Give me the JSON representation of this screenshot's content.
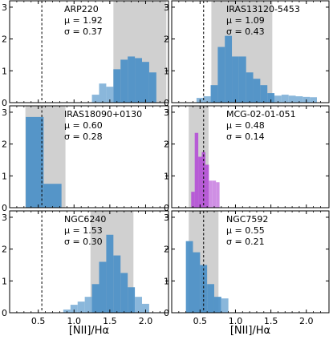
{
  "chart_data": {
    "type": "bar",
    "xlim": [
      0.1,
      2.32
    ],
    "ylim": [
      0,
      3.2
    ],
    "xticks": [
      "0.5",
      "1.0",
      "1.5",
      "2.0"
    ],
    "yticks": [
      "0",
      "1",
      "2",
      "3"
    ],
    "xlabel": "[NII]/Hα",
    "vline_x": 0.55,
    "panels": [
      {
        "title": "ARP220",
        "mu_text": "μ = 1.92",
        "sigma_text": "σ = 0.37",
        "color": "#4a8fc7",
        "shade": [
          1.55,
          2.29
        ],
        "bin_width": 0.1,
        "bins": [
          {
            "x": 1.3,
            "y": 0.25
          },
          {
            "x": 1.4,
            "y": 0.6
          },
          {
            "x": 1.5,
            "y": 0.5
          },
          {
            "x": 1.6,
            "y": 1.05
          },
          {
            "x": 1.7,
            "y": 1.35
          },
          {
            "x": 1.8,
            "y": 1.45
          },
          {
            "x": 1.9,
            "y": 1.4
          },
          {
            "x": 2.0,
            "y": 1.28
          },
          {
            "x": 2.1,
            "y": 0.95
          }
        ]
      },
      {
        "title": "IRAS13120-5453",
        "mu_text": "μ = 1.09",
        "sigma_text": "σ = 0.43",
        "color": "#4a8fc7",
        "shade": [
          0.66,
          1.52
        ],
        "bin_width": 0.1,
        "bins": [
          {
            "x": 0.5,
            "y": 0.15
          },
          {
            "x": 0.6,
            "y": 0.2
          },
          {
            "x": 0.7,
            "y": 0.55
          },
          {
            "x": 0.8,
            "y": 1.75
          },
          {
            "x": 0.9,
            "y": 2.1
          },
          {
            "x": 1.0,
            "y": 1.45
          },
          {
            "x": 1.1,
            "y": 1.45
          },
          {
            "x": 1.2,
            "y": 0.95
          },
          {
            "x": 1.3,
            "y": 0.75
          },
          {
            "x": 1.4,
            "y": 0.55
          },
          {
            "x": 1.5,
            "y": 0.3
          },
          {
            "x": 1.6,
            "y": 0.22
          },
          {
            "x": 1.7,
            "y": 0.25
          },
          {
            "x": 1.8,
            "y": 0.22
          },
          {
            "x": 1.9,
            "y": 0.2
          },
          {
            "x": 2.0,
            "y": 0.18
          },
          {
            "x": 2.1,
            "y": 0.17
          }
        ]
      },
      {
        "title": "IRAS18090+0130",
        "mu_text": "μ = 0.60",
        "sigma_text": "σ = 0.28",
        "color": "#4a8fc7",
        "shade": [
          0.32,
          0.88
        ],
        "bin_width": 0.25,
        "bins": [
          {
            "x": 0.45,
            "y": 2.85
          },
          {
            "x": 0.7,
            "y": 0.75
          }
        ]
      },
      {
        "title": "MCG-02-01-051",
        "mu_text": "μ = 0.48",
        "sigma_text": "σ = 0.14",
        "color": "#b450d6",
        "shade": [
          0.34,
          0.62
        ],
        "bin_width": 0.05,
        "bins": [
          {
            "x": 0.4,
            "y": 0.5
          },
          {
            "x": 0.45,
            "y": 2.35
          },
          {
            "x": 0.5,
            "y": 1.6
          },
          {
            "x": 0.55,
            "y": 1.75
          },
          {
            "x": 0.6,
            "y": 1.35
          },
          {
            "x": 0.65,
            "y": 0.85
          },
          {
            "x": 0.7,
            "y": 0.85
          },
          {
            "x": 0.75,
            "y": 0.8
          }
        ]
      },
      {
        "title": "NGC6240",
        "mu_text": "μ = 1.53",
        "sigma_text": "σ = 0.30",
        "color": "#4a8fc7",
        "shade": [
          1.23,
          1.83
        ],
        "bin_width": 0.1,
        "bins": [
          {
            "x": 0.9,
            "y": 0.1
          },
          {
            "x": 1.0,
            "y": 0.25
          },
          {
            "x": 1.1,
            "y": 0.35
          },
          {
            "x": 1.2,
            "y": 0.5
          },
          {
            "x": 1.3,
            "y": 0.9
          },
          {
            "x": 1.4,
            "y": 1.6
          },
          {
            "x": 1.5,
            "y": 2.45
          },
          {
            "x": 1.6,
            "y": 1.8
          },
          {
            "x": 1.7,
            "y": 1.25
          },
          {
            "x": 1.8,
            "y": 0.8
          },
          {
            "x": 1.9,
            "y": 0.5
          },
          {
            "x": 2.0,
            "y": 0.28
          }
        ]
      },
      {
        "title": "NGC7592",
        "mu_text": "μ = 0.55",
        "sigma_text": "σ = 0.21",
        "color": "#4a8fc7",
        "shade": [
          0.34,
          0.76
        ],
        "bin_width": 0.1,
        "bins": [
          {
            "x": 0.35,
            "y": 2.25
          },
          {
            "x": 0.45,
            "y": 1.9
          },
          {
            "x": 0.55,
            "y": 1.5
          },
          {
            "x": 0.65,
            "y": 0.9
          },
          {
            "x": 0.75,
            "y": 0.5
          },
          {
            "x": 0.85,
            "y": 0.45
          }
        ]
      }
    ]
  }
}
